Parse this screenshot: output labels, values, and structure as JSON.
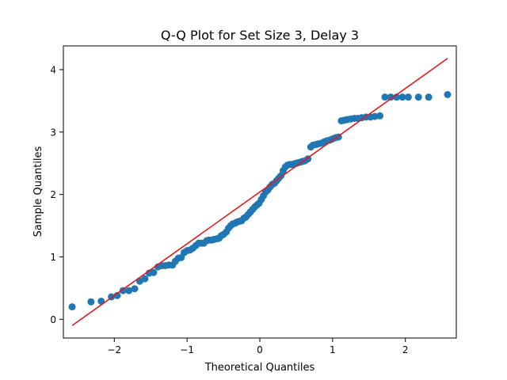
{
  "chart_data": {
    "type": "scatter",
    "title": "Q-Q Plot for Set Size 3, Delay 3",
    "xlabel": "Theoretical Quantiles",
    "ylabel": "Sample Quantiles",
    "xlim": [
      -2.7,
      2.7
    ],
    "ylim": [
      -0.3,
      4.38
    ],
    "xticks": [
      {
        "value": -2,
        "label": "−2"
      },
      {
        "value": -1,
        "label": "−1"
      },
      {
        "value": 0,
        "label": "0"
      },
      {
        "value": 1,
        "label": "1"
      },
      {
        "value": 2,
        "label": "2"
      }
    ],
    "yticks": [
      {
        "value": 0,
        "label": "0"
      },
      {
        "value": 1,
        "label": "1"
      },
      {
        "value": 2,
        "label": "2"
      },
      {
        "value": 3,
        "label": "3"
      },
      {
        "value": 4,
        "label": "4"
      }
    ],
    "grid": false,
    "marker_color": "#1f77b4",
    "line_color": "#e41a1c",
    "reference_line": {
      "x": [
        -2.58,
        2.58
      ],
      "y": [
        -0.1,
        4.18
      ]
    },
    "points": [
      [
        -2.58,
        0.2
      ],
      [
        -2.32,
        0.28
      ],
      [
        -2.18,
        0.29
      ],
      [
        -2.04,
        0.36
      ],
      [
        -1.96,
        0.38
      ],
      [
        -1.88,
        0.46
      ],
      [
        -1.8,
        0.46
      ],
      [
        -1.72,
        0.49
      ],
      [
        -1.65,
        0.61
      ],
      [
        -1.58,
        0.65
      ],
      [
        -1.52,
        0.74
      ],
      [
        -1.46,
        0.75
      ],
      [
        -1.4,
        0.84
      ],
      [
        -1.35,
        0.86
      ],
      [
        -1.3,
        0.86
      ],
      [
        -1.25,
        0.87
      ],
      [
        -1.2,
        0.87
      ],
      [
        -1.16,
        0.93
      ],
      [
        -1.12,
        0.98
      ],
      [
        -1.08,
        0.99
      ],
      [
        -1.04,
        1.07
      ],
      [
        -1.0,
        1.1
      ],
      [
        -0.96,
        1.11
      ],
      [
        -0.92,
        1.14
      ],
      [
        -0.88,
        1.18
      ],
      [
        -0.84,
        1.22
      ],
      [
        -0.8,
        1.22
      ],
      [
        -0.77,
        1.22
      ],
      [
        -0.73,
        1.26
      ],
      [
        -0.7,
        1.27
      ],
      [
        -0.66,
        1.27
      ],
      [
        -0.63,
        1.28
      ],
      [
        -0.59,
        1.29
      ],
      [
        -0.56,
        1.3
      ],
      [
        -0.53,
        1.34
      ],
      [
        -0.5,
        1.36
      ],
      [
        -0.46,
        1.4
      ],
      [
        -0.43,
        1.46
      ],
      [
        -0.4,
        1.5
      ],
      [
        -0.37,
        1.53
      ],
      [
        -0.34,
        1.54
      ],
      [
        -0.31,
        1.56
      ],
      [
        -0.28,
        1.57
      ],
      [
        -0.25,
        1.58
      ],
      [
        -0.22,
        1.62
      ],
      [
        -0.19,
        1.64
      ],
      [
        -0.16,
        1.68
      ],
      [
        -0.13,
        1.72
      ],
      [
        -0.1,
        1.76
      ],
      [
        -0.07,
        1.8
      ],
      [
        -0.04,
        1.83
      ],
      [
        -0.01,
        1.86
      ],
      [
        0.02,
        1.92
      ],
      [
        0.05,
        1.98
      ],
      [
        0.08,
        2.04
      ],
      [
        0.11,
        2.07
      ],
      [
        0.14,
        2.12
      ],
      [
        0.17,
        2.16
      ],
      [
        0.2,
        2.18
      ],
      [
        0.23,
        2.22
      ],
      [
        0.26,
        2.26
      ],
      [
        0.29,
        2.3
      ],
      [
        0.32,
        2.38
      ],
      [
        0.35,
        2.44
      ],
      [
        0.38,
        2.47
      ],
      [
        0.41,
        2.48
      ],
      [
        0.44,
        2.48
      ],
      [
        0.47,
        2.49
      ],
      [
        0.5,
        2.5
      ],
      [
        0.53,
        2.51
      ],
      [
        0.56,
        2.52
      ],
      [
        0.59,
        2.53
      ],
      [
        0.62,
        2.54
      ],
      [
        0.66,
        2.57
      ],
      [
        0.7,
        2.76
      ],
      [
        0.73,
        2.79
      ],
      [
        0.77,
        2.8
      ],
      [
        0.8,
        2.81
      ],
      [
        0.84,
        2.82
      ],
      [
        0.88,
        2.84
      ],
      [
        0.92,
        2.86
      ],
      [
        0.96,
        2.87
      ],
      [
        1.0,
        2.89
      ],
      [
        1.04,
        2.91
      ],
      [
        1.08,
        2.92
      ],
      [
        1.12,
        3.18
      ],
      [
        1.16,
        3.19
      ],
      [
        1.2,
        3.2
      ],
      [
        1.25,
        3.21
      ],
      [
        1.3,
        3.22
      ],
      [
        1.35,
        3.22
      ],
      [
        1.4,
        3.23
      ],
      [
        1.46,
        3.24
      ],
      [
        1.52,
        3.24
      ],
      [
        1.58,
        3.25
      ],
      [
        1.65,
        3.26
      ],
      [
        1.72,
        3.56
      ],
      [
        1.8,
        3.56
      ],
      [
        1.88,
        3.56
      ],
      [
        1.96,
        3.56
      ],
      [
        2.04,
        3.56
      ],
      [
        2.18,
        3.56
      ],
      [
        2.32,
        3.56
      ],
      [
        2.58,
        3.6
      ]
    ]
  }
}
